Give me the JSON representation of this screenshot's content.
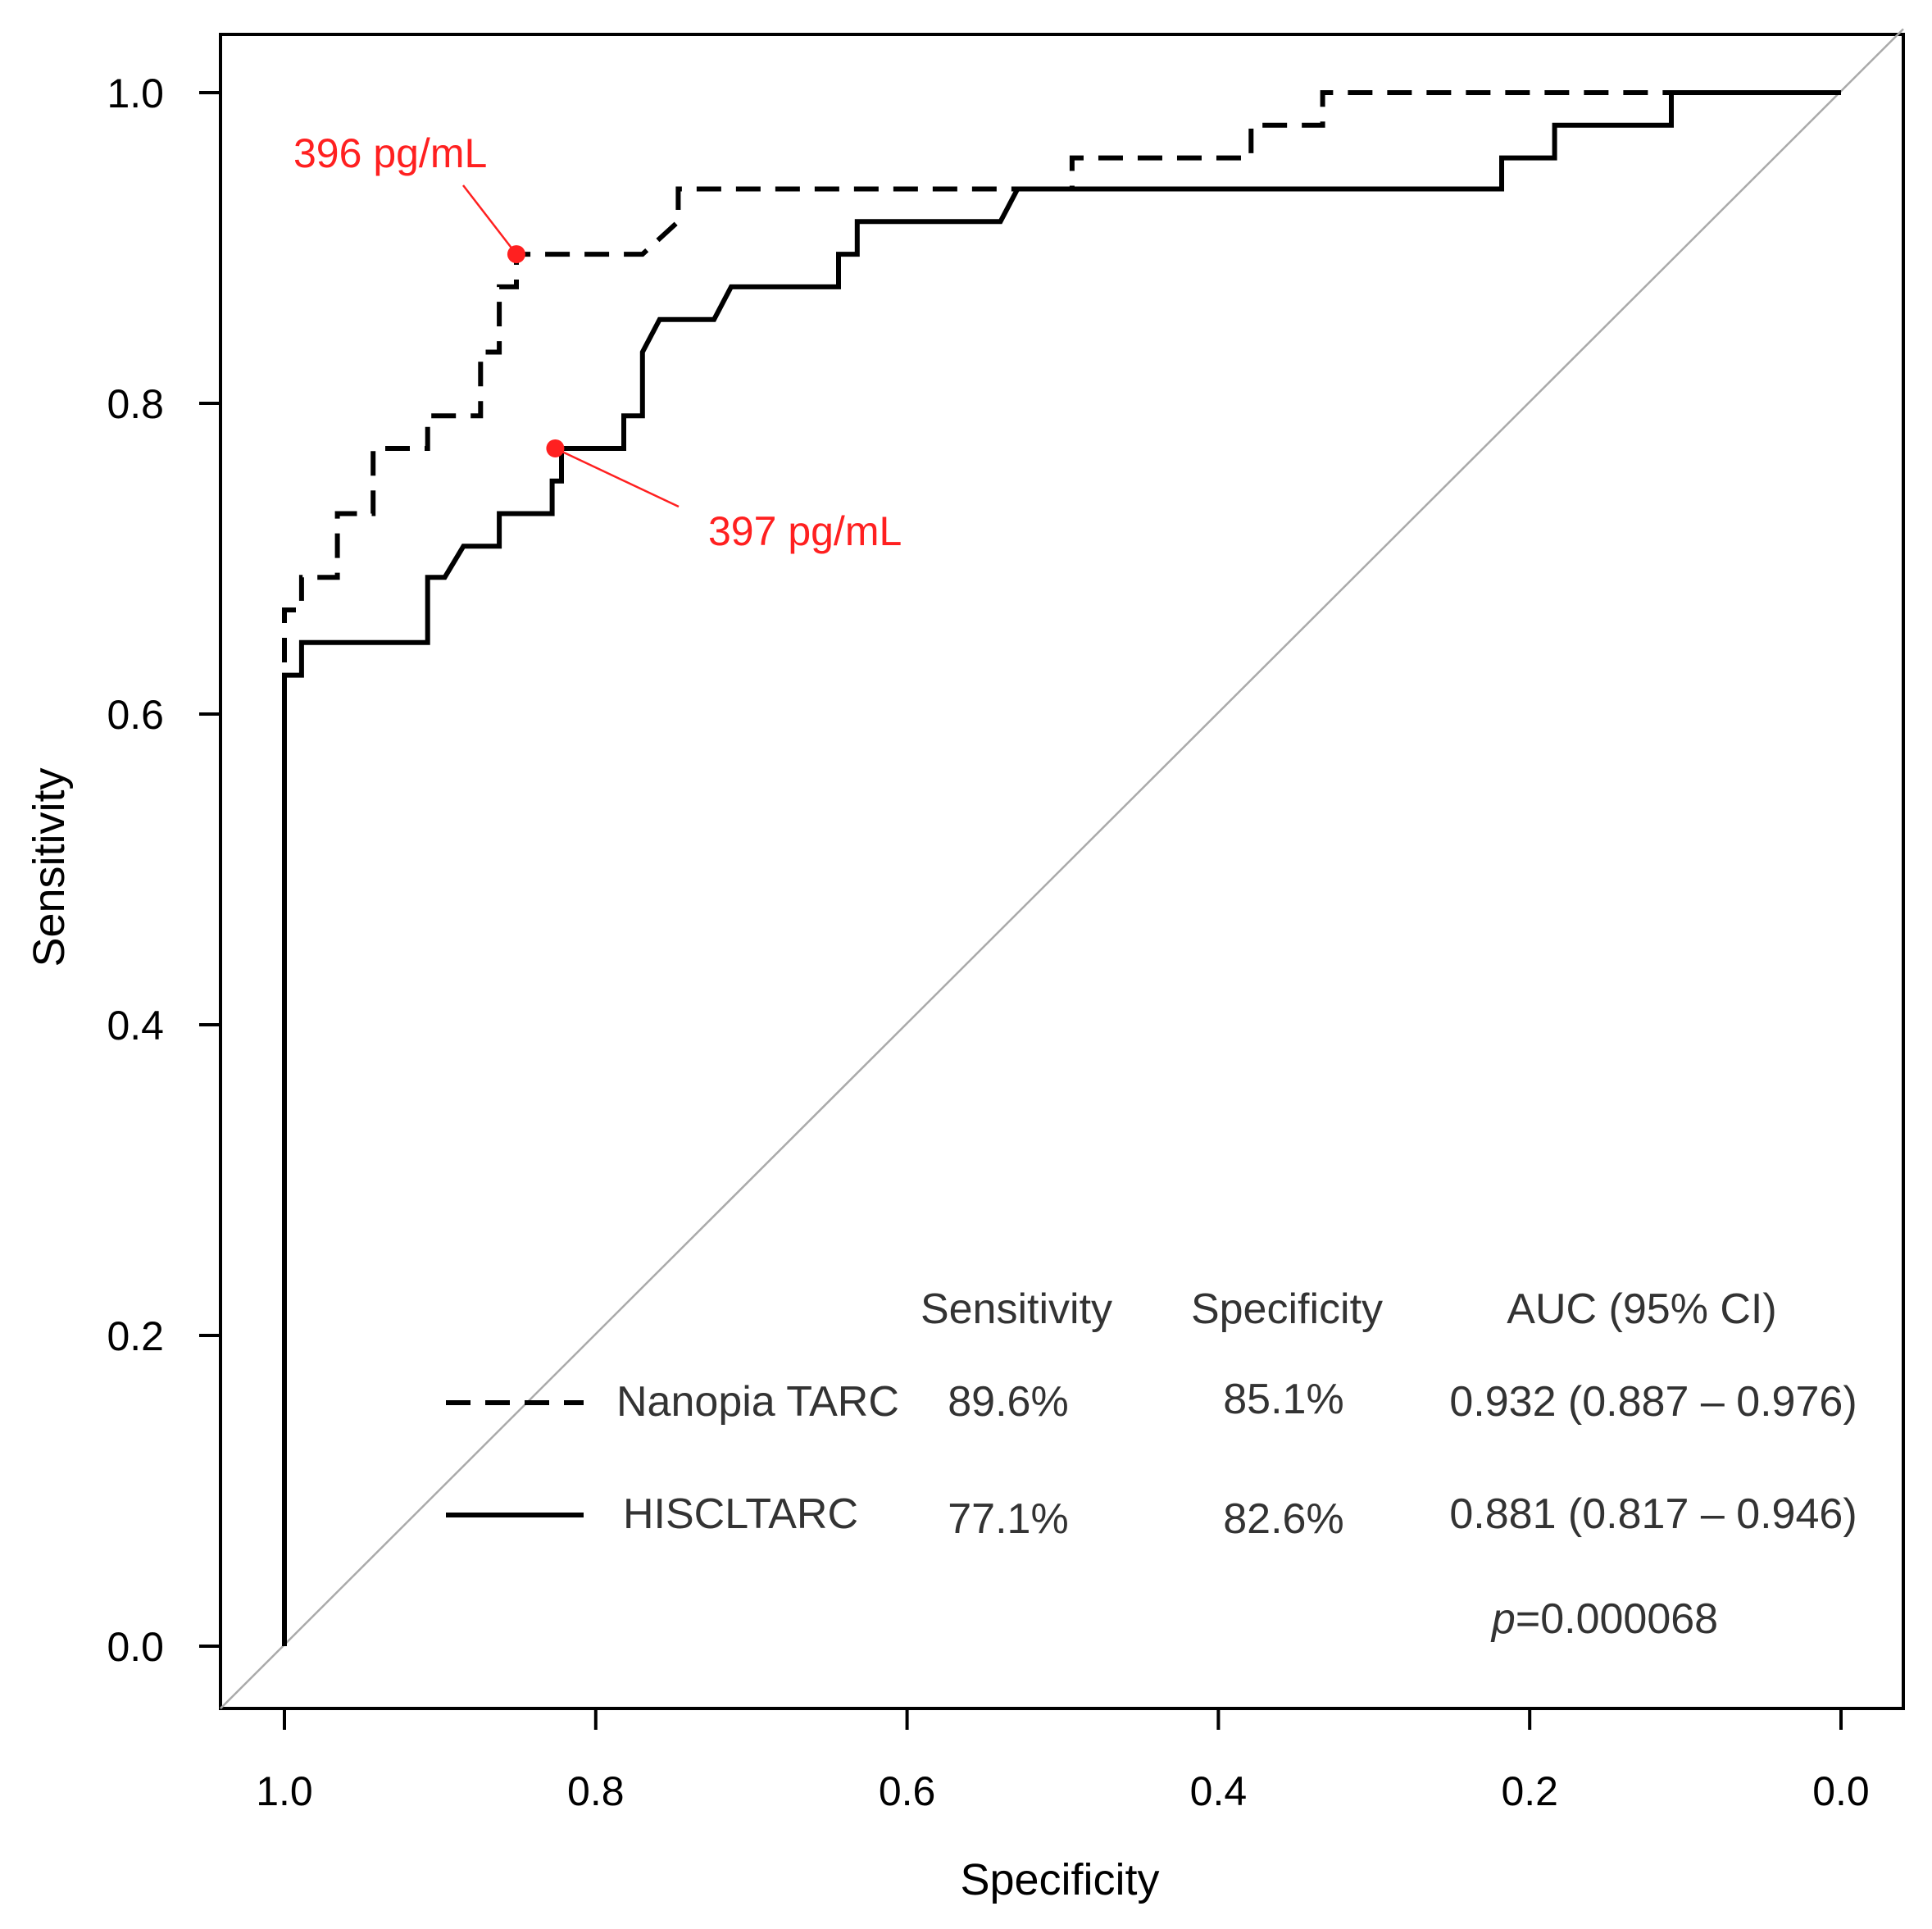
{
  "chart_data": {
    "type": "line",
    "title": "",
    "xlabel": "Specificity",
    "ylabel": "Sensitivity",
    "xlim": [
      1.0,
      0.0
    ],
    "ylim": [
      0.0,
      1.0
    ],
    "x_ticks": [
      "1.0",
      "0.8",
      "0.6",
      "0.4",
      "0.2",
      "0.0"
    ],
    "y_ticks": [
      "0.0",
      "0.2",
      "0.4",
      "0.6",
      "0.8",
      "1.0"
    ],
    "grid": false,
    "reference_line": {
      "from": [
        1.0,
        0.0
      ],
      "to": [
        0.0,
        1.0
      ],
      "color": "#aaaaaa"
    },
    "series": [
      {
        "name": "Nanopia TARC",
        "style": "dashed",
        "points": [
          [
            1.0,
            0.0
          ],
          [
            1.0,
            0.646
          ],
          [
            1.0,
            0.667
          ],
          [
            0.989,
            0.667
          ],
          [
            0.989,
            0.688
          ],
          [
            0.966,
            0.688
          ],
          [
            0.966,
            0.729
          ],
          [
            0.943,
            0.729
          ],
          [
            0.943,
            0.771
          ],
          [
            0.908,
            0.771
          ],
          [
            0.908,
            0.792
          ],
          [
            0.874,
            0.792
          ],
          [
            0.874,
            0.833
          ],
          [
            0.862,
            0.833
          ],
          [
            0.862,
            0.875
          ],
          [
            0.851,
            0.875
          ],
          [
            0.851,
            0.896
          ],
          [
            0.77,
            0.896
          ],
          [
            0.747,
            0.917
          ],
          [
            0.747,
            0.938
          ],
          [
            0.494,
            0.938
          ],
          [
            0.494,
            0.958
          ],
          [
            0.379,
            0.958
          ],
          [
            0.379,
            0.979
          ],
          [
            0.333,
            0.979
          ],
          [
            0.333,
            1.0
          ],
          [
            0.0,
            1.0
          ]
        ]
      },
      {
        "name": "HISCLTARC",
        "style": "solid",
        "points": [
          [
            1.0,
            0.0
          ],
          [
            1.0,
            0.625
          ],
          [
            0.989,
            0.625
          ],
          [
            0.989,
            0.646
          ],
          [
            0.908,
            0.646
          ],
          [
            0.908,
            0.688
          ],
          [
            0.897,
            0.688
          ],
          [
            0.885,
            0.708
          ],
          [
            0.862,
            0.708
          ],
          [
            0.862,
            0.729
          ],
          [
            0.828,
            0.729
          ],
          [
            0.828,
            0.75
          ],
          [
            0.822,
            0.75
          ],
          [
            0.822,
            0.771
          ],
          [
            0.782,
            0.771
          ],
          [
            0.782,
            0.792
          ],
          [
            0.77,
            0.792
          ],
          [
            0.77,
            0.833
          ],
          [
            0.759,
            0.854
          ],
          [
            0.724,
            0.854
          ],
          [
            0.713,
            0.875
          ],
          [
            0.644,
            0.875
          ],
          [
            0.644,
            0.896
          ],
          [
            0.632,
            0.896
          ],
          [
            0.632,
            0.917
          ],
          [
            0.54,
            0.917
          ],
          [
            0.529,
            0.938
          ],
          [
            0.218,
            0.938
          ],
          [
            0.218,
            0.958
          ],
          [
            0.184,
            0.958
          ],
          [
            0.184,
            0.979
          ],
          [
            0.109,
            0.979
          ],
          [
            0.109,
            1.0
          ],
          [
            0.0,
            1.0
          ]
        ]
      }
    ],
    "annotations": [
      {
        "series": "Nanopia TARC",
        "text": "396 pg/mL",
        "point": [
          0.851,
          0.896
        ],
        "color": "#ff2020"
      },
      {
        "series": "HISCLTARC",
        "text": "397 pg/mL",
        "point": [
          0.826,
          0.771
        ],
        "color": "#ff2020"
      }
    ],
    "summary_table": {
      "headers": [
        "Sensitivity",
        "Specificity",
        "AUC (95% CI)"
      ],
      "rows": [
        {
          "name": "Nanopia TARC",
          "style": "dashed",
          "sensitivity": "89.6%",
          "specificity": "85.1%",
          "auc": "0.932 (0.887 – 0.976)"
        },
        {
          "name": "HISCLTARC",
          "style": "solid",
          "sensitivity": "77.1%",
          "specificity": "82.6%",
          "auc": "0.881 (0.817 – 0.946)"
        }
      ],
      "p_value": "=0.000068",
      "p_symbol": "p"
    }
  },
  "colors": {
    "curve": "#000000",
    "reference": "#aaaaaa",
    "annotation": "#ff2020"
  }
}
